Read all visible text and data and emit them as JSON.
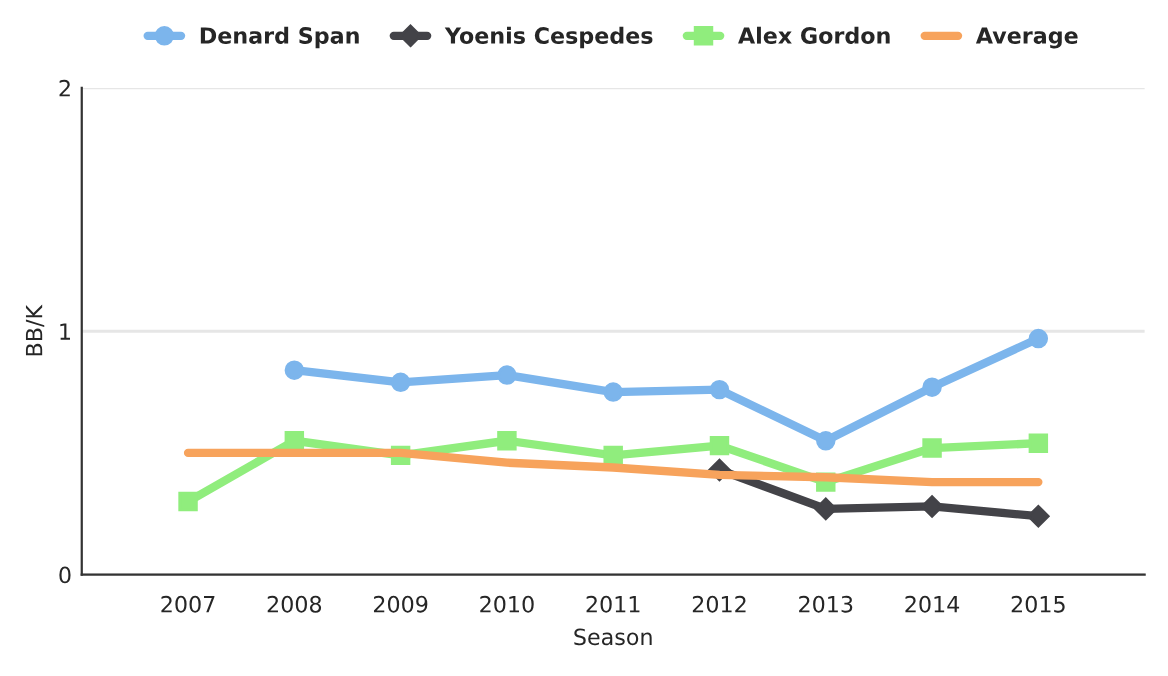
{
  "chart_data": {
    "type": "line",
    "xlabel": "Season",
    "ylabel": "BB/K",
    "x": [
      2007,
      2008,
      2009,
      2010,
      2011,
      2012,
      2013,
      2014,
      2015
    ],
    "xlim": [
      2006,
      2016
    ],
    "xticks": [
      2007,
      2008,
      2009,
      2010,
      2011,
      2012,
      2013,
      2014,
      2015
    ],
    "ylim": [
      0,
      2
    ],
    "yticks": [
      0,
      1,
      2
    ],
    "grid": "y",
    "legend": "top",
    "series": [
      {
        "name": "Denard Span",
        "color": "#7cb5ec",
        "marker": "circle",
        "values": [
          null,
          0.84,
          0.79,
          0.82,
          0.75,
          0.76,
          0.55,
          0.77,
          0.97
        ]
      },
      {
        "name": "Yoenis Cespedes",
        "color": "#434348",
        "marker": "diamond",
        "values": [
          null,
          null,
          null,
          null,
          null,
          0.43,
          0.27,
          0.28,
          0.24
        ]
      },
      {
        "name": "Alex Gordon",
        "color": "#90ed7d",
        "marker": "square",
        "values": [
          0.3,
          0.55,
          0.49,
          0.55,
          0.49,
          0.53,
          0.38,
          0.52,
          0.54
        ]
      },
      {
        "name": "Average",
        "color": "#f7a35c",
        "marker": "none",
        "values": [
          0.5,
          0.5,
          0.5,
          0.46,
          0.44,
          0.41,
          0.4,
          0.38,
          0.38
        ]
      }
    ]
  }
}
